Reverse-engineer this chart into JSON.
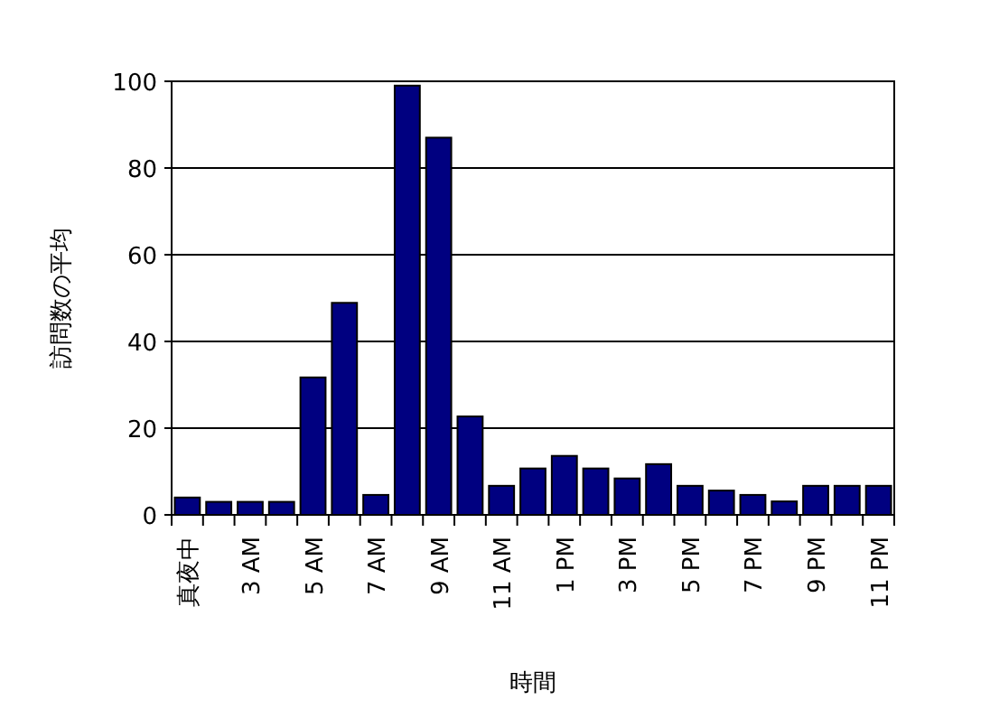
{
  "chart_data": {
    "type": "bar",
    "xlabel": "時間",
    "ylabel": "訪問数の平均",
    "categories": [
      "真夜中",
      null,
      "3 AM",
      null,
      "5 AM",
      null,
      "7 AM",
      null,
      "9 AM",
      null,
      "11 AM",
      null,
      "1 PM",
      null,
      "3 PM",
      null,
      "5 PM",
      null,
      "7 PM",
      null,
      "9 PM",
      null,
      "11 PM"
    ],
    "values": [
      4,
      3,
      3,
      3,
      31.7,
      48.9,
      4.6,
      99,
      87,
      22.7,
      6.7,
      10.7,
      13.6,
      10.7,
      8.4,
      11.7,
      6.7,
      5.6,
      4.6,
      3.1,
      6.7,
      6.7,
      6.7
    ],
    "color": "#000080",
    "ylim": [
      0,
      100
    ],
    "yticks": [
      0,
      20,
      40,
      60,
      80,
      100
    ],
    "grid": "y"
  }
}
